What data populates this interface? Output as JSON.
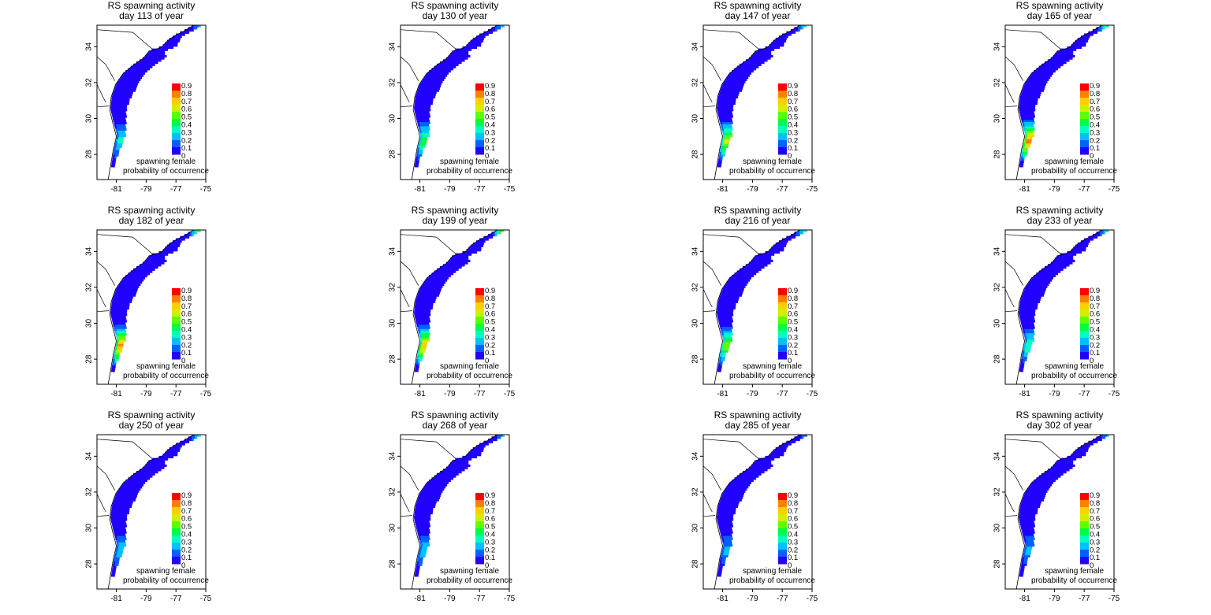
{
  "figure": {
    "title_prefix": "RS spawning activity",
    "legend_label_line1": "spawning female",
    "legend_label_line2": "probability of occurrence",
    "legend_ticks": [
      "0.9",
      "0.8",
      "0.7",
      "0.6",
      "0.5",
      "0.4",
      "0.3",
      "0.2",
      "0.1",
      "0"
    ],
    "legend_colors": [
      "#ff0000",
      "#ff8000",
      "#ffd000",
      "#d0f000",
      "#60ff00",
      "#00ff40",
      "#00ffc0",
      "#00c0ff",
      "#0060ff",
      "#2000ff"
    ],
    "x_ticks": [
      "-81",
      "-79",
      "-77",
      "-75"
    ],
    "y_ticks": [
      "34",
      "32",
      "30",
      "28"
    ],
    "x_range": [
      -82.3,
      -75.0
    ],
    "y_range": [
      26.6,
      35.2
    ]
  },
  "panels": [
    {
      "subtitle": "day 113 of year",
      "hotspot": 0.35,
      "north": 0.2
    },
    {
      "subtitle": "day 130 of year",
      "hotspot": 0.5,
      "north": 0.25
    },
    {
      "subtitle": "day 147 of year",
      "hotspot": 0.65,
      "north": 0.3
    },
    {
      "subtitle": "day 165 of year",
      "hotspot": 0.9,
      "north": 0.45
    },
    {
      "subtitle": "day 182 of year",
      "hotspot": 0.85,
      "north": 0.5
    },
    {
      "subtitle": "day 199 of year",
      "hotspot": 0.8,
      "north": 0.55
    },
    {
      "subtitle": "day 216 of year",
      "hotspot": 0.6,
      "north": 0.35
    },
    {
      "subtitle": "day 233 of year",
      "hotspot": 0.4,
      "north": 0.3
    },
    {
      "subtitle": "day 250 of year",
      "hotspot": 0.3,
      "north": 0.3
    },
    {
      "subtitle": "day 268 of year",
      "hotspot": 0.3,
      "north": 0.2
    },
    {
      "subtitle": "day 285 of year",
      "hotspot": 0.25,
      "north": 0.15
    },
    {
      "subtitle": "day 302 of year",
      "hotspot": 0.25,
      "north": 0.2
    }
  ]
}
